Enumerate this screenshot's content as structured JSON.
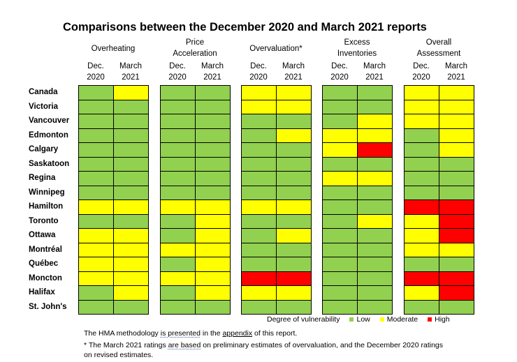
{
  "title": "Comparisons between the December 2020 and March 2021 reports",
  "columns": [
    {
      "line1": "Overheating",
      "line2": ""
    },
    {
      "line1": "Price",
      "line2": "Acceleration"
    },
    {
      "line1": "Overvaluation*",
      "line2": ""
    },
    {
      "line1": "Excess",
      "line2": "Inventories"
    },
    {
      "line1": "Overall",
      "line2": "Assessment"
    }
  ],
  "sub_headers": [
    {
      "line1": "Dec.",
      "line2": "2020"
    },
    {
      "line1": "March",
      "line2": "2021"
    }
  ],
  "cities": [
    "Canada",
    "Victoria",
    "Vancouver",
    "Edmonton",
    "Calgary",
    "Saskatoon",
    "Regina",
    "Winnipeg",
    "Hamilton",
    "Toronto",
    "Ottawa",
    "Montréal",
    "Québec",
    "Moncton",
    "Halifax",
    "St. John's"
  ],
  "ratings": [
    [
      "G",
      "Y",
      "G",
      "G",
      "Y",
      "Y",
      "G",
      "G",
      "Y",
      "Y"
    ],
    [
      "G",
      "G",
      "G",
      "G",
      "Y",
      "Y",
      "G",
      "G",
      "Y",
      "Y"
    ],
    [
      "G",
      "G",
      "G",
      "G",
      "G",
      "G",
      "G",
      "Y",
      "Y",
      "Y"
    ],
    [
      "G",
      "G",
      "G",
      "G",
      "G",
      "Y",
      "Y",
      "Y",
      "G",
      "Y"
    ],
    [
      "G",
      "G",
      "G",
      "G",
      "G",
      "G",
      "Y",
      "R",
      "G",
      "Y"
    ],
    [
      "G",
      "G",
      "G",
      "G",
      "G",
      "G",
      "G",
      "G",
      "G",
      "G"
    ],
    [
      "G",
      "G",
      "G",
      "G",
      "G",
      "G",
      "Y",
      "Y",
      "G",
      "G"
    ],
    [
      "G",
      "G",
      "G",
      "G",
      "G",
      "G",
      "G",
      "G",
      "G",
      "G"
    ],
    [
      "Y",
      "Y",
      "Y",
      "Y",
      "Y",
      "Y",
      "G",
      "G",
      "R",
      "R"
    ],
    [
      "G",
      "G",
      "G",
      "Y",
      "G",
      "G",
      "G",
      "Y",
      "Y",
      "R"
    ],
    [
      "Y",
      "Y",
      "G",
      "Y",
      "G",
      "Y",
      "G",
      "G",
      "Y",
      "R"
    ],
    [
      "Y",
      "Y",
      "Y",
      "Y",
      "G",
      "G",
      "G",
      "G",
      "Y",
      "Y"
    ],
    [
      "Y",
      "Y",
      "G",
      "Y",
      "G",
      "G",
      "G",
      "G",
      "G",
      "G"
    ],
    [
      "Y",
      "Y",
      "Y",
      "Y",
      "R",
      "R",
      "G",
      "G",
      "R",
      "R"
    ],
    [
      "G",
      "Y",
      "G",
      "Y",
      "Y",
      "Y",
      "G",
      "G",
      "Y",
      "R"
    ],
    [
      "G",
      "G",
      "G",
      "G",
      "G",
      "G",
      "G",
      "G",
      "G",
      "G"
    ]
  ],
  "colors": {
    "G": "#92d050",
    "Y": "#ffff00",
    "R": "#ff0000"
  },
  "legend": {
    "title": "Degree of vulnerability",
    "low": "Low",
    "moderate": "Moderate",
    "high": "High"
  },
  "notes": {
    "line1_a": "The HMA methodology ",
    "line1_b": "is presented",
    "line1_c": " in the ",
    "line1_d": "appendix",
    "line1_e": " of this report.",
    "line2_a": "* The March 2021 ratings ",
    "line2_b": "are based",
    "line2_c": " on preliminary estimates of overvaluation, and the December 2020 ratings",
    "line3": "on revised estimates."
  }
}
